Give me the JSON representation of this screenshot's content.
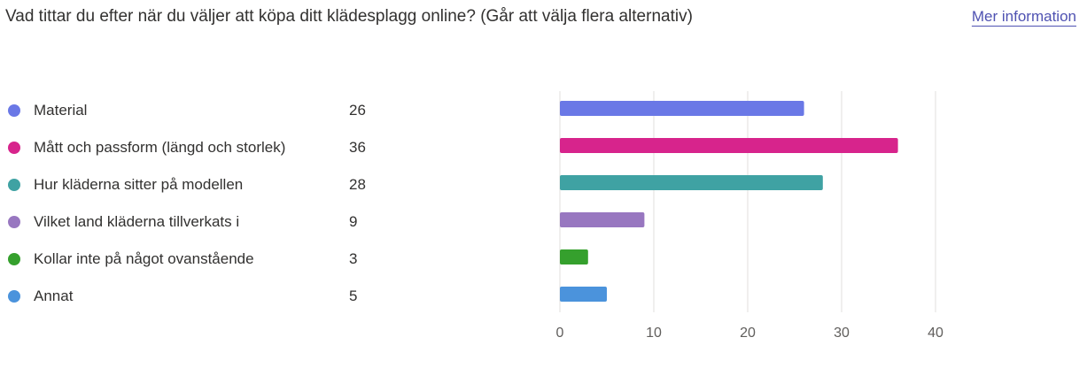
{
  "header": {
    "question": "Vad tittar du efter när du väljer att köpa ditt klädesplagg online? (Går att välja flera alternativ)",
    "more_info_label": "Mer information"
  },
  "legend": {
    "items": [
      {
        "label": "Material",
        "count": "26",
        "color": "#6a78e6"
      },
      {
        "label": "Mått och passform (längd och storlek)",
        "count": "36",
        "color": "#d7248c"
      },
      {
        "label": "Hur kläderna sitter på modellen",
        "count": "28",
        "color": "#3fa2a3"
      },
      {
        "label": "Vilket land kläderna tillverkats i",
        "count": "9",
        "color": "#9877c0"
      },
      {
        "label": "Kollar inte på något ovanstående",
        "count": "3",
        "color": "#35a02d"
      },
      {
        "label": "Annat",
        "count": "5",
        "color": "#4b93dc"
      }
    ]
  },
  "chart_data": {
    "type": "bar",
    "orientation": "horizontal",
    "categories": [
      "Material",
      "Mått och passform (längd och storlek)",
      "Hur kläderna sitter på modellen",
      "Vilket land kläderna tillverkats i",
      "Kollar inte på något ovanstående",
      "Annat"
    ],
    "values": [
      26,
      36,
      28,
      9,
      3,
      5
    ],
    "colors": [
      "#6a78e6",
      "#d7248c",
      "#3fa2a3",
      "#9877c0",
      "#35a02d",
      "#4b93dc"
    ],
    "xlim": [
      0,
      40
    ],
    "xticks": [
      0,
      10,
      20,
      30,
      40
    ],
    "grid": true,
    "grid_color": "#e1dfdd"
  }
}
